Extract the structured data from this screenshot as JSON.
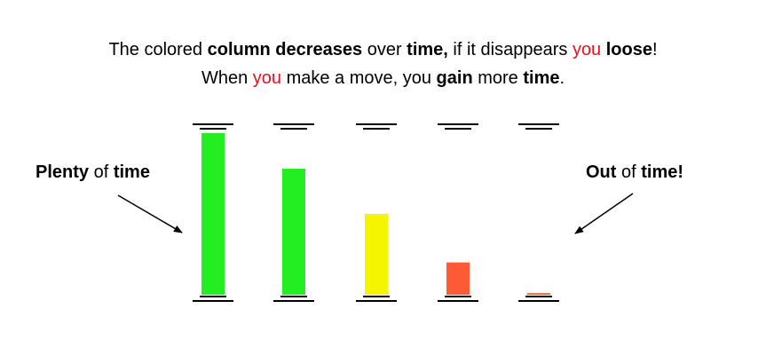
{
  "headline": {
    "line1": [
      {
        "text": "The colored ",
        "bold": false,
        "color": "#000000"
      },
      {
        "text": "column decreases",
        "bold": true,
        "color": "#000000"
      },
      {
        "text": " over ",
        "bold": false,
        "color": "#000000"
      },
      {
        "text": "time,",
        "bold": true,
        "color": "#000000"
      },
      {
        "text": " if it disappears ",
        "bold": false,
        "color": "#000000"
      },
      {
        "text": "you",
        "bold": false,
        "color": "#e8121f"
      },
      {
        "text": " ",
        "bold": false,
        "color": "#000000"
      },
      {
        "text": "loose",
        "bold": true,
        "color": "#000000"
      },
      {
        "text": "!",
        "bold": false,
        "color": "#000000"
      }
    ],
    "line2": [
      {
        "text": "When ",
        "bold": false,
        "color": "#000000"
      },
      {
        "text": "you",
        "bold": false,
        "color": "#e8121f"
      },
      {
        "text": " make a move, you ",
        "bold": false,
        "color": "#000000"
      },
      {
        "text": "gain",
        "bold": true,
        "color": "#000000"
      },
      {
        "text": " more ",
        "bold": false,
        "color": "#000000"
      },
      {
        "text": "time",
        "bold": true,
        "color": "#000000"
      },
      {
        "text": ".",
        "bold": false,
        "color": "#000000"
      }
    ]
  },
  "labels": {
    "left": [
      {
        "text": "Plenty",
        "bold": true
      },
      {
        "text": " of ",
        "bold": false
      },
      {
        "text": "time",
        "bold": true
      }
    ],
    "right": [
      {
        "text": "Out",
        "bold": true
      },
      {
        "text": " of ",
        "bold": false
      },
      {
        "text": "time!",
        "bold": true
      }
    ]
  },
  "columns": [
    {
      "fill_fraction": 1.0,
      "color": "#22ee22"
    },
    {
      "fill_fraction": 0.78,
      "color": "#22ee22"
    },
    {
      "fill_fraction": 0.5,
      "color": "#f5f500"
    },
    {
      "fill_fraction": 0.2,
      "color": "#ff5a36"
    },
    {
      "fill_fraction": 0.01,
      "color": "#ff5a36"
    }
  ],
  "colors": {
    "text": "#000000",
    "accent_red": "#e8121f"
  }
}
